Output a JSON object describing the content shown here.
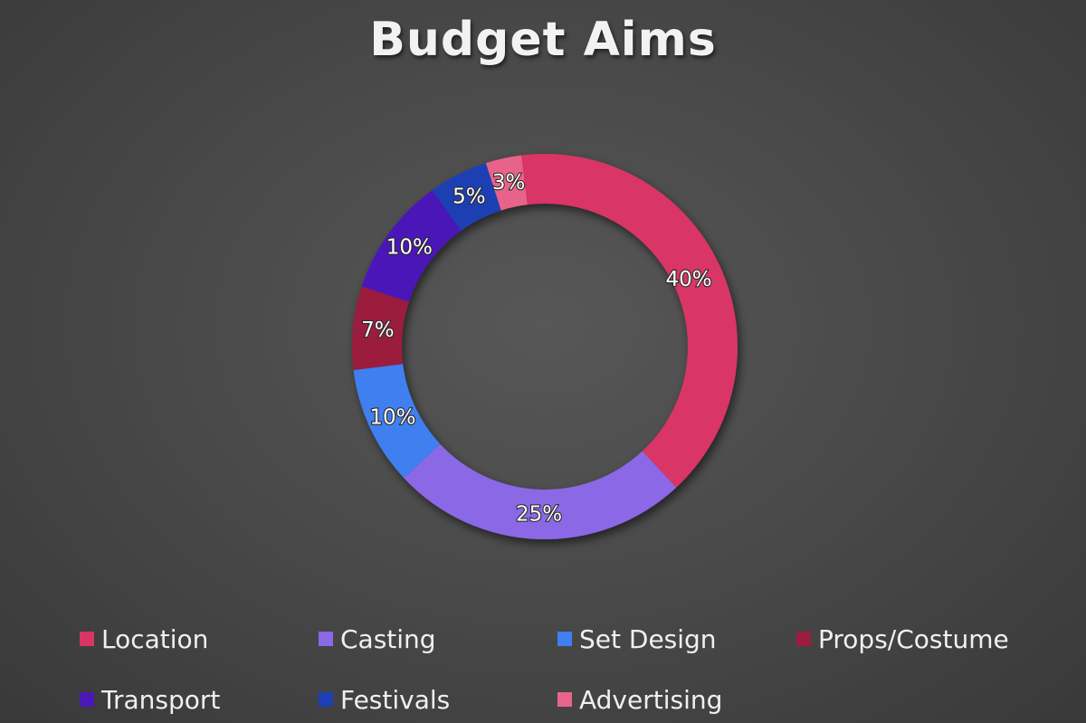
{
  "chart_data": {
    "type": "pie",
    "title": "Budget Aims",
    "categories": [
      "Location",
      "Casting",
      "Set Design",
      "Props/Costume",
      "Transport",
      "Festivals",
      "Advertising"
    ],
    "values": [
      40,
      25,
      10,
      7,
      10,
      5,
      3
    ],
    "data_labels": [
      "40%",
      "25%",
      "10%",
      "7%",
      "10%",
      "5%",
      "3%"
    ],
    "colors": [
      "#d93466",
      "#8a68e6",
      "#3f7fef",
      "#9c1d3e",
      "#4b18b8",
      "#1c3fb4",
      "#e8648a"
    ],
    "legend_position": "bottom",
    "style": "donut"
  }
}
